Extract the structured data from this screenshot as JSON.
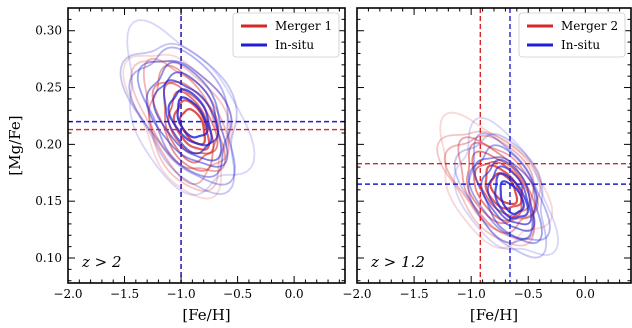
{
  "chart_data": [
    {
      "type": "contour",
      "xlabel": "[Fe/H]",
      "ylabel": "[Mg/Fe]",
      "xlim": [
        -2.0,
        0.45
      ],
      "ylim": [
        0.078,
        0.32
      ],
      "x_ticks": [
        -2.0,
        -1.5,
        -1.0,
        -0.5,
        0.0
      ],
      "x_tick_labels": [
        "−2.0",
        "−1.5",
        "−1.0",
        "−0.5",
        "0.0"
      ],
      "y_ticks": [
        0.1,
        0.15,
        0.2,
        0.25,
        0.3
      ],
      "y_tick_labels": [
        "0.10",
        "0.15",
        "0.20",
        "0.25",
        "0.30"
      ],
      "annotation": "z > 2",
      "legend_placement": "top-right",
      "series": [
        {
          "name": "Merger 1",
          "color": "#d62728",
          "median_feh": -1.0,
          "median_mgfe": 0.213,
          "peak": [
            -0.88,
            0.215
          ],
          "spread_feh": 0.36,
          "spread_mgfe": 0.046
        },
        {
          "name": "In-situ",
          "color": "#1f1fd6",
          "median_feh": -1.0,
          "median_mgfe": 0.22,
          "peak": [
            -0.9,
            0.222
          ],
          "spread_feh": 0.44,
          "spread_mgfe": 0.052
        }
      ]
    },
    {
      "type": "contour",
      "xlabel": "[Fe/H]",
      "x_ticks": [
        -2.0,
        -1.5,
        -1.0,
        -0.5,
        0.0
      ],
      "x_tick_labels": [
        "−2.0",
        "−1.5",
        "−1.0",
        "−0.5",
        "0.0"
      ],
      "xlim": [
        -2.0,
        0.4
      ],
      "ylim": [
        0.078,
        0.32
      ],
      "annotation": "z > 1.2",
      "legend_placement": "top-right",
      "series": [
        {
          "name": "Merger 2",
          "color": "#d62728",
          "median_feh": -0.92,
          "median_mgfe": 0.183,
          "peak": [
            -0.7,
            0.16
          ],
          "spread_feh": 0.38,
          "spread_mgfe": 0.04
        },
        {
          "name": "In-situ",
          "color": "#1f1fd6",
          "median_feh": -0.66,
          "median_mgfe": 0.165,
          "peak": [
            -0.64,
            0.152
          ],
          "spread_feh": 0.34,
          "spread_mgfe": 0.042
        }
      ]
    }
  ],
  "colors": {
    "red": "#d62728",
    "blue": "#1f1fd6"
  }
}
